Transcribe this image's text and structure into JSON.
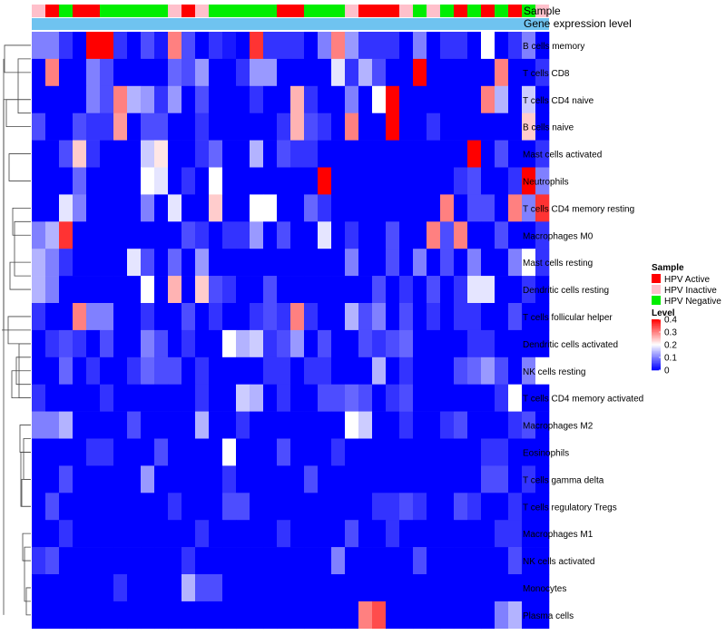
{
  "chart_data": {
    "type": "heatmap",
    "annotation_labels": [
      "Sample",
      "Gene expression level"
    ],
    "legend": {
      "sample_title": "Sample",
      "sample_entries": [
        {
          "label": "HPV Active",
          "color": "#ff0000"
        },
        {
          "label": "HPV Inactive",
          "color": "#ffc0cb"
        },
        {
          "label": "HPV Negative",
          "color": "#00ee00"
        }
      ],
      "level_title": "Level",
      "level_ticks": [
        "0.4",
        "0.3",
        "0.2",
        "0.1",
        "0"
      ],
      "level_tick_values": [
        0.4,
        0.3,
        0.2,
        0.1,
        0
      ],
      "placement": "right"
    },
    "colorscale": {
      "low": "#0000ff",
      "mid": "#ffffff",
      "high": "#ff0000",
      "min": 0,
      "max": 0.4
    },
    "gene_expression_color": "#6fc3f0",
    "sample_groups": [
      "I",
      "A",
      "N",
      "A",
      "A",
      "N",
      "N",
      "N",
      "N",
      "N",
      "I",
      "A",
      "I",
      "N",
      "N",
      "N",
      "N",
      "N",
      "A",
      "A",
      "N",
      "N",
      "N",
      "I",
      "A",
      "A",
      "A",
      "I",
      "N",
      "I",
      "N",
      "A",
      "N",
      "A",
      "N",
      "A",
      "N",
      "I"
    ],
    "rows": [
      "B cells memory",
      "T cells CD8",
      "T cells CD4 naive",
      "B cells naive",
      "Mast cells activated",
      "Neutrophils",
      "T cells CD4 memory resting",
      "Macrophages M0",
      "Mast cells resting",
      "Dendritic cells resting",
      "T cells follicular helper",
      "Dendritic cells activated",
      "NK cells resting",
      "T cells CD4 memory activated",
      "Macrophages M2",
      "Eosinophils",
      "T cells gamma delta",
      "T cells regulatory  Tregs",
      "Macrophages M1",
      "NK cells activated",
      "Monocytes",
      "Plasma cells"
    ],
    "values": [
      [
        0.1,
        0.1,
        0.04,
        0.0,
        0.4,
        0.4,
        0.04,
        0.0,
        0.06,
        0.02,
        0.3,
        0.06,
        0.0,
        0.04,
        0.02,
        0.0,
        0.36,
        0.04,
        0.04,
        0.04,
        0.0,
        0.1,
        0.3,
        0.12,
        0.04,
        0.04,
        0.04,
        0.0,
        0.1,
        0.0,
        0.04,
        0.04,
        0.0,
        0.2,
        0.0,
        0.04,
        0.1,
        0.0
      ],
      [
        0.0,
        0.3,
        0.0,
        0.0,
        0.1,
        0.06,
        0.0,
        0.0,
        0.0,
        0.0,
        0.08,
        0.06,
        0.12,
        0.0,
        0.0,
        0.04,
        0.12,
        0.12,
        0.0,
        0.0,
        0.0,
        0.0,
        0.18,
        0.04,
        0.14,
        0.06,
        0.0,
        0.0,
        0.4,
        0.0,
        0.0,
        0.0,
        0.0,
        0.0,
        0.3,
        0.0,
        0.0,
        0.04
      ],
      [
        0.0,
        0.0,
        0.0,
        0.0,
        0.1,
        0.06,
        0.3,
        0.14,
        0.12,
        0.04,
        0.12,
        0.0,
        0.06,
        0.0,
        0.0,
        0.0,
        0.04,
        0.0,
        0.0,
        0.26,
        0.04,
        0.0,
        0.0,
        0.1,
        0.0,
        0.2,
        0.4,
        0.0,
        0.0,
        0.0,
        0.0,
        0.0,
        0.0,
        0.3,
        0.14,
        0.0,
        0.16,
        0.0
      ],
      [
        0.06,
        0.0,
        0.0,
        0.06,
        0.04,
        0.04,
        0.28,
        0.0,
        0.06,
        0.06,
        0.0,
        0.0,
        0.04,
        0.0,
        0.0,
        0.0,
        0.0,
        0.0,
        0.04,
        0.26,
        0.06,
        0.04,
        0.0,
        0.3,
        0.0,
        0.0,
        0.4,
        0.0,
        0.0,
        0.04,
        0.0,
        0.0,
        0.0,
        0.0,
        0.0,
        0.0,
        0.24,
        0.0
      ],
      [
        0.0,
        0.0,
        0.06,
        0.24,
        0.04,
        0.0,
        0.0,
        0.0,
        0.16,
        0.22,
        0.0,
        0.0,
        0.04,
        0.08,
        0.0,
        0.0,
        0.14,
        0.0,
        0.06,
        0.04,
        0.04,
        0.0,
        0.0,
        0.0,
        0.0,
        0.0,
        0.0,
        0.0,
        0.0,
        0.0,
        0.0,
        0.0,
        0.4,
        0.0,
        0.06,
        0.0,
        0.0,
        0.04
      ],
      [
        0.0,
        0.0,
        0.0,
        0.08,
        0.0,
        0.0,
        0.0,
        0.0,
        0.2,
        0.18,
        0.0,
        0.04,
        0.0,
        0.2,
        0.0,
        0.0,
        0.0,
        0.0,
        0.0,
        0.0,
        0.0,
        0.4,
        0.0,
        0.0,
        0.0,
        0.0,
        0.0,
        0.0,
        0.0,
        0.0,
        0.0,
        0.04,
        0.06,
        0.0,
        0.0,
        0.04,
        0.4,
        0.1
      ],
      [
        0.0,
        0.0,
        0.18,
        0.1,
        0.0,
        0.0,
        0.0,
        0.0,
        0.1,
        0.0,
        0.18,
        0.0,
        0.0,
        0.24,
        0.0,
        0.0,
        0.2,
        0.2,
        0.0,
        0.0,
        0.08,
        0.04,
        0.0,
        0.0,
        0.0,
        0.0,
        0.0,
        0.0,
        0.0,
        0.0,
        0.3,
        0.0,
        0.06,
        0.06,
        0.0,
        0.3,
        0.1,
        0.36
      ],
      [
        0.1,
        0.14,
        0.36,
        0.0,
        0.0,
        0.0,
        0.0,
        0.0,
        0.0,
        0.0,
        0.0,
        0.06,
        0.04,
        0.0,
        0.04,
        0.04,
        0.12,
        0.0,
        0.06,
        0.0,
        0.0,
        0.18,
        0.0,
        0.04,
        0.0,
        0.0,
        0.06,
        0.0,
        0.0,
        0.3,
        0.06,
        0.3,
        0.0,
        0.0,
        0.06,
        0.0,
        0.0,
        0.04
      ],
      [
        0.14,
        0.1,
        0.04,
        0.0,
        0.0,
        0.0,
        0.0,
        0.18,
        0.06,
        0.0,
        0.08,
        0.0,
        0.12,
        0.0,
        0.0,
        0.0,
        0.0,
        0.0,
        0.0,
        0.0,
        0.0,
        0.0,
        0.0,
        0.1,
        0.0,
        0.0,
        0.06,
        0.0,
        0.1,
        0.0,
        0.06,
        0.0,
        0.1,
        0.0,
        0.0,
        0.1,
        0.2,
        0.04
      ],
      [
        0.14,
        0.1,
        0.0,
        0.0,
        0.0,
        0.0,
        0.0,
        0.0,
        0.2,
        0.0,
        0.26,
        0.0,
        0.24,
        0.06,
        0.04,
        0.0,
        0.0,
        0.06,
        0.0,
        0.0,
        0.0,
        0.0,
        0.0,
        0.0,
        0.0,
        0.06,
        0.0,
        0.04,
        0.0,
        0.06,
        0.0,
        0.04,
        0.18,
        0.18,
        0.0,
        0.0,
        0.04,
        0.0
      ],
      [
        0.04,
        0.0,
        0.0,
        0.3,
        0.1,
        0.1,
        0.0,
        0.0,
        0.04,
        0.0,
        0.0,
        0.06,
        0.0,
        0.04,
        0.0,
        0.0,
        0.04,
        0.06,
        0.04,
        0.3,
        0.04,
        0.0,
        0.0,
        0.14,
        0.06,
        0.1,
        0.0,
        0.06,
        0.0,
        0.04,
        0.0,
        0.04,
        0.04,
        0.0,
        0.0,
        0.06,
        0.0,
        0.0
      ],
      [
        0.0,
        0.04,
        0.06,
        0.04,
        0.0,
        0.06,
        0.0,
        0.0,
        0.1,
        0.06,
        0.0,
        0.04,
        0.0,
        0.0,
        0.2,
        0.14,
        0.16,
        0.04,
        0.06,
        0.12,
        0.0,
        0.06,
        0.0,
        0.0,
        0.06,
        0.04,
        0.06,
        0.08,
        0.0,
        0.0,
        0.0,
        0.0,
        0.04,
        0.04,
        0.0,
        0.0,
        0.0,
        0.0
      ],
      [
        0.0,
        0.0,
        0.08,
        0.0,
        0.04,
        0.0,
        0.0,
        0.04,
        0.08,
        0.06,
        0.06,
        0.0,
        0.04,
        0.0,
        0.0,
        0.0,
        0.0,
        0.04,
        0.04,
        0.0,
        0.04,
        0.04,
        0.0,
        0.0,
        0.0,
        0.14,
        0.0,
        0.04,
        0.0,
        0.0,
        0.0,
        0.06,
        0.08,
        0.12,
        0.06,
        0.0,
        0.1,
        0.2
      ],
      [
        0.04,
        0.0,
        0.0,
        0.0,
        0.0,
        0.04,
        0.0,
        0.0,
        0.0,
        0.0,
        0.0,
        0.0,
        0.04,
        0.0,
        0.0,
        0.16,
        0.14,
        0.0,
        0.04,
        0.0,
        0.0,
        0.06,
        0.06,
        0.08,
        0.06,
        0.0,
        0.04,
        0.06,
        0.0,
        0.0,
        0.0,
        0.0,
        0.0,
        0.0,
        0.04,
        0.2,
        0.0,
        0.0
      ],
      [
        0.1,
        0.1,
        0.14,
        0.0,
        0.0,
        0.0,
        0.0,
        0.06,
        0.0,
        0.0,
        0.0,
        0.0,
        0.14,
        0.0,
        0.0,
        0.04,
        0.0,
        0.0,
        0.0,
        0.0,
        0.0,
        0.0,
        0.0,
        0.2,
        0.16,
        0.0,
        0.0,
        0.04,
        0.0,
        0.0,
        0.04,
        0.06,
        0.0,
        0.0,
        0.0,
        0.04,
        0.06,
        0.0
      ],
      [
        0.0,
        0.0,
        0.0,
        0.0,
        0.04,
        0.04,
        0.0,
        0.0,
        0.0,
        0.06,
        0.0,
        0.0,
        0.0,
        0.0,
        0.2,
        0.0,
        0.0,
        0.0,
        0.06,
        0.0,
        0.0,
        0.0,
        0.04,
        0.0,
        0.0,
        0.0,
        0.0,
        0.0,
        0.0,
        0.0,
        0.0,
        0.0,
        0.0,
        0.04,
        0.04,
        0.0,
        0.0,
        0.0
      ],
      [
        0.0,
        0.0,
        0.06,
        0.0,
        0.0,
        0.0,
        0.0,
        0.0,
        0.12,
        0.0,
        0.0,
        0.0,
        0.0,
        0.0,
        0.04,
        0.0,
        0.0,
        0.0,
        0.0,
        0.0,
        0.06,
        0.0,
        0.0,
        0.0,
        0.0,
        0.0,
        0.0,
        0.0,
        0.0,
        0.0,
        0.0,
        0.0,
        0.0,
        0.06,
        0.06,
        0.0,
        0.04,
        0.0
      ],
      [
        0.0,
        0.06,
        0.0,
        0.0,
        0.0,
        0.0,
        0.0,
        0.0,
        0.0,
        0.0,
        0.04,
        0.0,
        0.0,
        0.0,
        0.06,
        0.06,
        0.0,
        0.0,
        0.0,
        0.0,
        0.0,
        0.0,
        0.0,
        0.0,
        0.0,
        0.04,
        0.04,
        0.06,
        0.04,
        0.0,
        0.0,
        0.06,
        0.04,
        0.0,
        0.0,
        0.04,
        0.0,
        0.0
      ],
      [
        0.0,
        0.0,
        0.04,
        0.0,
        0.0,
        0.0,
        0.0,
        0.0,
        0.0,
        0.0,
        0.0,
        0.0,
        0.04,
        0.0,
        0.0,
        0.0,
        0.0,
        0.0,
        0.04,
        0.0,
        0.0,
        0.0,
        0.0,
        0.06,
        0.0,
        0.0,
        0.04,
        0.0,
        0.0,
        0.0,
        0.0,
        0.0,
        0.0,
        0.0,
        0.04,
        0.04,
        0.0,
        0.0
      ],
      [
        0.04,
        0.06,
        0.0,
        0.0,
        0.0,
        0.0,
        0.0,
        0.0,
        0.0,
        0.0,
        0.0,
        0.04,
        0.0,
        0.0,
        0.0,
        0.0,
        0.0,
        0.0,
        0.0,
        0.0,
        0.0,
        0.0,
        0.1,
        0.0,
        0.0,
        0.0,
        0.0,
        0.0,
        0.06,
        0.0,
        0.0,
        0.0,
        0.0,
        0.0,
        0.0,
        0.06,
        0.0,
        0.0
      ],
      [
        0.0,
        0.0,
        0.0,
        0.0,
        0.0,
        0.0,
        0.04,
        0.0,
        0.0,
        0.0,
        0.0,
        0.14,
        0.06,
        0.06,
        0.0,
        0.0,
        0.0,
        0.0,
        0.0,
        0.0,
        0.0,
        0.0,
        0.0,
        0.0,
        0.0,
        0.0,
        0.0,
        0.0,
        0.0,
        0.0,
        0.0,
        0.0,
        0.0,
        0.0,
        0.0,
        0.0,
        0.0,
        0.0
      ],
      [
        0.0,
        0.0,
        0.0,
        0.0,
        0.0,
        0.0,
        0.0,
        0.0,
        0.0,
        0.0,
        0.0,
        0.0,
        0.0,
        0.0,
        0.0,
        0.0,
        0.0,
        0.0,
        0.0,
        0.0,
        0.0,
        0.0,
        0.0,
        0.0,
        0.3,
        0.34,
        0.0,
        0.0,
        0.0,
        0.0,
        0.0,
        0.0,
        0.0,
        0.0,
        0.1,
        0.14,
        0.0,
        0.0
      ]
    ]
  }
}
